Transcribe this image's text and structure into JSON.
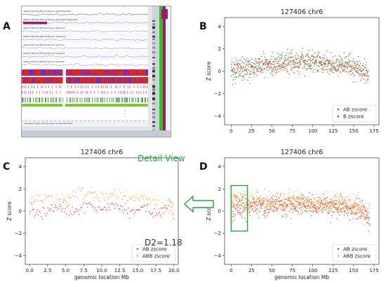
{
  "panels": {
    "A": "A",
    "B": "B",
    "C": "C",
    "D": "D"
  },
  "browser": {
    "track_labels": [
      "[GBA2] 1897318_ARM-Hsv7M-pain-hgHSA-fltargeted",
      "[GBA2] 1897318_ARM-Hsv7M-pain-hbus-hgHSA-hgHSA-GFP",
      "[GBA2] 1897318_ARM-Hsv7M-pain-hgHSA-zsd",
      "[GBA2] 1897318_ARM-Hsv7M-pain-ultrasparse",
      "[GBA2] 1897318_ARM-Hsv7M-pain-hgHSA-fxx",
      "[GBA2] 1897318_ARM-Hsv7M-pain-fxxaligned",
      "[GBA2] 1897318_ARM-Hsv7M-pain-hbaseHSA"
    ],
    "bottom_label": "Cytoband Hg19 chr6 genomic coordinate 20%",
    "accent_purple": "#9b1b6a",
    "accent_green": "#2fc11c",
    "accent_red": "#e02424"
  },
  "annotations": {
    "detail_view": "Detail View",
    "d2": "D2=1.18"
  },
  "colors": {
    "green_series": "#1f9a2e",
    "red_series": "#e32424",
    "orange_series": "#f2a020",
    "highlight_box": "#1aab3c",
    "arrow": "#1aab3c"
  },
  "chart_data": [
    {
      "id": "B",
      "type": "scatter",
      "title": "127406 chr6",
      "xlabel": "",
      "ylabel": "Z score",
      "xlim": [
        -8,
        181
      ],
      "ylim": [
        -4.8,
        4.8
      ],
      "xticks": [
        0,
        25,
        50,
        75,
        100,
        125,
        150,
        175
      ],
      "yticks": [
        -4,
        -2,
        0,
        2,
        4
      ],
      "legend_position": "lower-right",
      "series": [
        {
          "name": "AB zscore",
          "color": "#1f9a2e",
          "x_range": [
            0,
            168
          ],
          "n": 420,
          "profile": [
            [
              0,
              0.0
            ],
            [
              20,
              0.2
            ],
            [
              45,
              0.6
            ],
            [
              70,
              0.9
            ],
            [
              95,
              0.8
            ],
            [
              120,
              0.7
            ],
            [
              145,
              0.6
            ],
            [
              160,
              0.2
            ],
            [
              168,
              -0.4
            ]
          ],
          "spread": 0.45
        },
        {
          "name": "B zscore",
          "color": "#e32424",
          "x_range": [
            0,
            168
          ],
          "n": 420,
          "profile": [
            [
              0,
              0.1
            ],
            [
              20,
              0.3
            ],
            [
              45,
              0.5
            ],
            [
              70,
              0.8
            ],
            [
              95,
              0.9
            ],
            [
              120,
              0.6
            ],
            [
              145,
              0.5
            ],
            [
              160,
              0.0
            ],
            [
              168,
              -0.7
            ]
          ],
          "spread": 0.45
        }
      ]
    },
    {
      "id": "C",
      "type": "scatter",
      "title": "127406 chr6",
      "xlabel": "genomic location Mb",
      "ylabel": "Z score",
      "xlim": [
        -0.6,
        20.6
      ],
      "ylim": [
        -4.8,
        4.8
      ],
      "xticks": [
        0.0,
        2.5,
        5.0,
        7.5,
        10.0,
        12.5,
        15.0,
        17.5,
        20.0
      ],
      "xtick_labels": [
        "0.0",
        "2.5",
        "5.0",
        "7.5",
        "10.0",
        "12.5",
        "15.0",
        "17.5",
        "20.0"
      ],
      "yticks": [
        -4,
        -2,
        0,
        2,
        4
      ],
      "legend_position": "lower-right",
      "series": [
        {
          "name": "AB zscore",
          "color": "#e32424",
          "x_range": [
            0,
            20
          ],
          "n": 150,
          "profile": [
            [
              0,
              0.2
            ],
            [
              2,
              -0.2
            ],
            [
              4,
              0.4
            ],
            [
              6,
              -0.1
            ],
            [
              8,
              0.6
            ],
            [
              10,
              0.1
            ],
            [
              12,
              0.5
            ],
            [
              14,
              -0.2
            ],
            [
              16,
              0.4
            ],
            [
              18,
              -0.3
            ],
            [
              19.5,
              0.9
            ],
            [
              20,
              -0.6
            ]
          ],
          "spread": 0.22
        },
        {
          "name": "ABB zscore",
          "color": "#f2a020",
          "x_range": [
            0,
            20
          ],
          "n": 150,
          "profile": [
            [
              0,
              0.8
            ],
            [
              2,
              1.2
            ],
            [
              4,
              0.9
            ],
            [
              6,
              1.4
            ],
            [
              8,
              1.8
            ],
            [
              10,
              1.2
            ],
            [
              12,
              1.5
            ],
            [
              14,
              1.0
            ],
            [
              16,
              1.3
            ],
            [
              18,
              0.6
            ],
            [
              20,
              0.1
            ]
          ],
          "spread": 0.3
        }
      ]
    },
    {
      "id": "D",
      "type": "scatter",
      "title": "127406 chr6",
      "xlabel": "genomic location Mb",
      "ylabel": "Z score",
      "xlim": [
        -8,
        181
      ],
      "ylim": [
        -4.8,
        4.8
      ],
      "xticks": [
        0,
        25,
        50,
        75,
        100,
        125,
        150,
        175
      ],
      "yticks": [
        -4,
        -2,
        0,
        2,
        4
      ],
      "legend_position": "lower-right",
      "highlight_range_x": [
        0,
        20
      ],
      "highlight_range_y": [
        -1.8,
        2.3
      ],
      "series": [
        {
          "name": "AB zscore",
          "color": "#e32424",
          "x_range": [
            0,
            170
          ],
          "n": 520,
          "profile": [
            [
              0,
              0.3
            ],
            [
              20,
              0.4
            ],
            [
              50,
              0.5
            ],
            [
              80,
              0.6
            ],
            [
              110,
              0.5
            ],
            [
              140,
              0.3
            ],
            [
              160,
              0.0
            ],
            [
              170,
              -0.9
            ]
          ],
          "spread": 0.45
        },
        {
          "name": "ABB zscore",
          "color": "#f2a020",
          "x_range": [
            0,
            170
          ],
          "n": 520,
          "profile": [
            [
              0,
              0.9
            ],
            [
              20,
              0.9
            ],
            [
              50,
              0.8
            ],
            [
              80,
              0.8
            ],
            [
              110,
              0.7
            ],
            [
              140,
              0.6
            ],
            [
              160,
              0.2
            ],
            [
              170,
              -0.4
            ]
          ],
          "spread": 0.45
        }
      ]
    }
  ]
}
